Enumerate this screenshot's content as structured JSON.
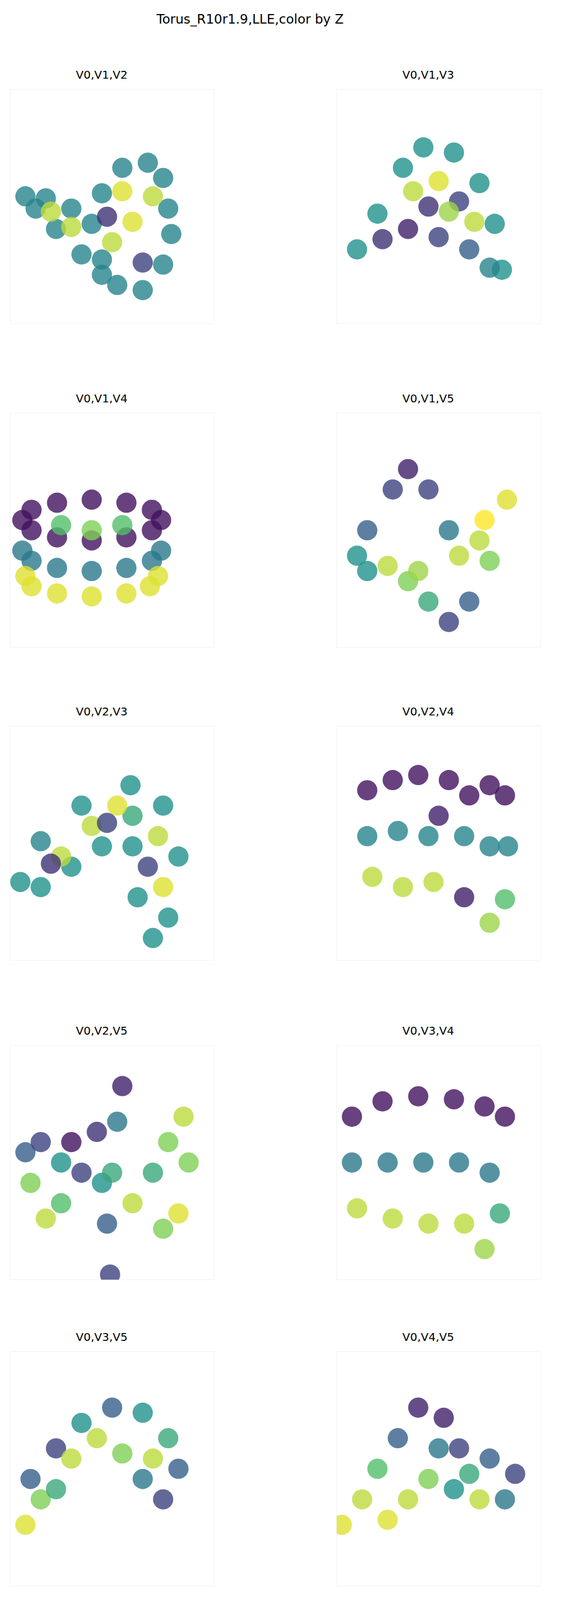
{
  "title": "Torus_R10r1.9,LLE,color by Z",
  "chart_data": [
    {
      "type": "scatter",
      "title": "V0,V1,V2",
      "color": "viridis",
      "tick_labels": false,
      "xlim": [
        0,
        200
      ],
      "ylim": [
        0,
        230
      ],
      "zlim": [
        0,
        1
      ],
      "x": [
        155,
        150,
        135,
        110,
        90,
        80,
        90,
        105,
        130,
        150,
        158,
        60,
        35,
        15,
        25,
        45,
        70,
        90,
        120,
        100,
        130,
        110,
        140,
        95,
        40,
        60
      ],
      "y": [
        113,
        143,
        158,
        153,
        128,
        98,
        63,
        38,
        33,
        58,
        88,
        113,
        123,
        125,
        113,
        93,
        68,
        48,
        100,
        80,
        60,
        130,
        125,
        105,
        110,
        95
      ],
      "z": [
        0.45,
        0.45,
        0.45,
        0.45,
        0.45,
        0.45,
        0.45,
        0.45,
        0.45,
        0.45,
        0.45,
        0.45,
        0.45,
        0.45,
        0.45,
        0.45,
        0.45,
        0.45,
        0.95,
        0.9,
        0.2,
        0.95,
        0.9,
        0.15,
        0.9,
        0.9
      ]
    },
    {
      "type": "scatter",
      "title": "V0,V1,V3",
      "color": "viridis",
      "tick_labels": false,
      "xlim": [
        0,
        200
      ],
      "ylim": [
        0,
        230
      ],
      "zlim": [
        0,
        1
      ],
      "x": [
        20,
        40,
        65,
        85,
        115,
        140,
        155,
        162,
        45,
        70,
        100,
        130,
        150,
        75,
        100,
        120,
        135,
        110,
        90
      ],
      "y": [
        73,
        108,
        153,
        173,
        168,
        138,
        98,
        53,
        83,
        93,
        85,
        73,
        55,
        130,
        140,
        120,
        100,
        110,
        115
      ],
      "z": [
        0.5,
        0.5,
        0.5,
        0.5,
        0.5,
        0.5,
        0.5,
        0.5,
        0.15,
        0.1,
        0.2,
        0.3,
        0.45,
        0.9,
        0.95,
        0.2,
        0.9,
        0.85,
        0.15
      ]
    },
    {
      "type": "scatter",
      "title": "V0,V1,V4",
      "color": "viridis",
      "tick_labels": false,
      "xlim": [
        0,
        200
      ],
      "ylim": [
        0,
        230
      ],
      "zlim": [
        0,
        1
      ],
      "x": [
        148,
        139,
        114,
        80,
        46,
        21,
        12,
        21,
        46,
        80,
        114,
        139,
        148,
        139,
        114,
        80,
        46,
        21,
        12,
        145,
        137,
        114,
        80,
        46,
        21,
        15,
        50,
        80,
        110
      ],
      "y": [
        125,
        115,
        108,
        105,
        108,
        115,
        125,
        135,
        142,
        145,
        142,
        135,
        95,
        85,
        78,
        75,
        78,
        85,
        95,
        70,
        60,
        53,
        50,
        53,
        60,
        70,
        120,
        115,
        120
      ],
      "z": [
        0.05,
        0.05,
        0.05,
        0.05,
        0.05,
        0.05,
        0.05,
        0.05,
        0.05,
        0.05,
        0.05,
        0.05,
        0.4,
        0.4,
        0.4,
        0.4,
        0.4,
        0.4,
        0.4,
        0.95,
        0.95,
        0.95,
        0.95,
        0.95,
        0.95,
        0.95,
        0.7,
        0.8,
        0.7
      ]
    },
    {
      "type": "scatter",
      "title": "V0,V1,V5",
      "color": "viridis",
      "tick_labels": false,
      "xlim": [
        0,
        200
      ],
      "ylim": [
        0,
        230
      ],
      "zlim": [
        0,
        1
      ],
      "x": [
        20,
        30,
        55,
        70,
        90,
        110,
        110,
        90,
        70,
        50,
        30,
        130,
        150,
        167,
        145,
        120,
        80,
        140
      ],
      "y": [
        90,
        115,
        155,
        175,
        155,
        115,
        25,
        45,
        65,
        80,
        75,
        45,
        85,
        145,
        125,
        90,
        75,
        105
      ],
      "z": [
        0.5,
        0.3,
        0.2,
        0.1,
        0.2,
        0.4,
        0.2,
        0.6,
        0.8,
        0.9,
        0.5,
        0.3,
        0.8,
        0.95,
        1,
        0.9,
        0.85,
        0.9
      ]
    },
    {
      "type": "scatter",
      "title": "V0,V2,V3",
      "color": "viridis",
      "tick_labels": false,
      "xlim": [
        0,
        200
      ],
      "ylim": [
        0,
        230
      ],
      "zlim": [
        0,
        1
      ],
      "x": [
        10,
        30,
        70,
        118,
        120,
        120,
        150,
        165,
        155,
        140,
        125,
        30,
        60,
        90,
        50,
        80,
        105,
        145,
        150,
        135,
        40,
        95
      ],
      "y": [
        77,
        117,
        152,
        172,
        142,
        112,
        152,
        102,
        42,
        22,
        62,
        72,
        92,
        112,
        102,
        132,
        152,
        122,
        72,
        92,
        95,
        135
      ],
      "z": [
        0.5,
        0.45,
        0.5,
        0.5,
        0.6,
        0.5,
        0.5,
        0.5,
        0.5,
        0.5,
        0.5,
        0.5,
        0.5,
        0.5,
        0.9,
        0.9,
        0.95,
        0.9,
        0.95,
        0.2,
        0.15,
        0.2
      ]
    },
    {
      "type": "scatter",
      "title": "V0,V2,V4",
      "color": "viridis",
      "tick_labels": false,
      "xlim": [
        0,
        200
      ],
      "ylim": [
        0,
        230
      ],
      "zlim": [
        0,
        1
      ],
      "x": [
        30,
        55,
        80,
        110,
        130,
        150,
        165,
        30,
        60,
        90,
        125,
        150,
        168,
        35,
        65,
        95,
        125,
        150,
        165,
        100
      ],
      "y": [
        167,
        177,
        182,
        177,
        162,
        172,
        162,
        122,
        127,
        122,
        122,
        112,
        112,
        82,
        72,
        77,
        62,
        37,
        60,
        142
      ],
      "z": [
        0.05,
        0.05,
        0.05,
        0.05,
        0.05,
        0.05,
        0.05,
        0.45,
        0.45,
        0.45,
        0.45,
        0.45,
        0.45,
        0.9,
        0.9,
        0.9,
        0.1,
        0.85,
        0.7,
        0.1
      ]
    },
    {
      "type": "scatter",
      "title": "V0,V2,V5",
      "color": "viridis",
      "tick_labels": false,
      "xlim": [
        0,
        200
      ],
      "ylim": [
        0,
        230
      ],
      "zlim": [
        0,
        1
      ],
      "x": [
        15,
        30,
        20,
        35,
        50,
        70,
        90,
        110,
        105,
        100,
        95,
        98,
        120,
        140,
        155,
        170,
        175,
        165,
        150,
        60,
        85,
        50
      ],
      "y": [
        125,
        135,
        95,
        60,
        75,
        105,
        95,
        190,
        155,
        105,
        55,
        5,
        75,
        105,
        135,
        160,
        115,
        65,
        50,
        135,
        145,
        115
      ],
      "z": [
        0.3,
        0.2,
        0.8,
        0.9,
        0.7,
        0.2,
        0.5,
        0.1,
        0.4,
        0.6,
        0.3,
        0.2,
        0.9,
        0.6,
        0.8,
        0.9,
        0.8,
        0.95,
        0.8,
        0.05,
        0.15,
        0.5
      ]
    },
    {
      "type": "scatter",
      "title": "V0,V3,V4",
      "color": "viridis",
      "tick_labels": false,
      "xlim": [
        0,
        200
      ],
      "ylim": [
        0,
        230
      ],
      "zlim": [
        0,
        1
      ],
      "x": [
        15,
        45,
        80,
        115,
        145,
        165,
        15,
        50,
        85,
        120,
        150,
        20,
        55,
        90,
        125,
        145,
        160
      ],
      "y": [
        160,
        175,
        180,
        177,
        170,
        160,
        115,
        115,
        115,
        115,
        105,
        70,
        60,
        55,
        55,
        30,
        65
      ],
      "z": [
        0.05,
        0.05,
        0.05,
        0.05,
        0.05,
        0.05,
        0.4,
        0.4,
        0.4,
        0.4,
        0.4,
        0.9,
        0.9,
        0.9,
        0.9,
        0.85,
        0.6
      ]
    },
    {
      "type": "scatter",
      "title": "V0,V3,V5",
      "color": "viridis",
      "tick_labels": false,
      "xlim": [
        0,
        200
      ],
      "ylim": [
        0,
        230
      ],
      "zlim": [
        0,
        1
      ],
      "x": [
        15,
        30,
        20,
        45,
        70,
        100,
        130,
        155,
        165,
        150,
        130,
        110,
        85,
        60,
        45,
        140
      ],
      "y": [
        60,
        85,
        105,
        135,
        160,
        175,
        170,
        145,
        115,
        85,
        105,
        130,
        145,
        125,
        95,
        125
      ],
      "z": [
        0.95,
        0.8,
        0.3,
        0.2,
        0.5,
        0.3,
        0.5,
        0.6,
        0.3,
        0.2,
        0.4,
        0.8,
        0.9,
        0.9,
        0.6,
        0.9
      ]
    },
    {
      "type": "scatter",
      "title": "V0,V4,V5",
      "color": "viridis",
      "tick_labels": false,
      "xlim": [
        0,
        200
      ],
      "ylim": [
        0,
        230
      ],
      "zlim": [
        0,
        1
      ],
      "x": [
        5,
        25,
        40,
        60,
        80,
        105,
        120,
        150,
        175,
        165,
        140,
        115,
        90,
        70,
        50,
        100,
        130
      ],
      "y": [
        60,
        85,
        115,
        145,
        175,
        165,
        135,
        125,
        110,
        85,
        85,
        95,
        105,
        85,
        65,
        135,
        110
      ],
      "z": [
        0.95,
        0.9,
        0.7,
        0.3,
        0.1,
        0.1,
        0.2,
        0.3,
        0.2,
        0.4,
        0.9,
        0.5,
        0.8,
        0.9,
        0.95,
        0.4,
        0.6
      ]
    }
  ]
}
